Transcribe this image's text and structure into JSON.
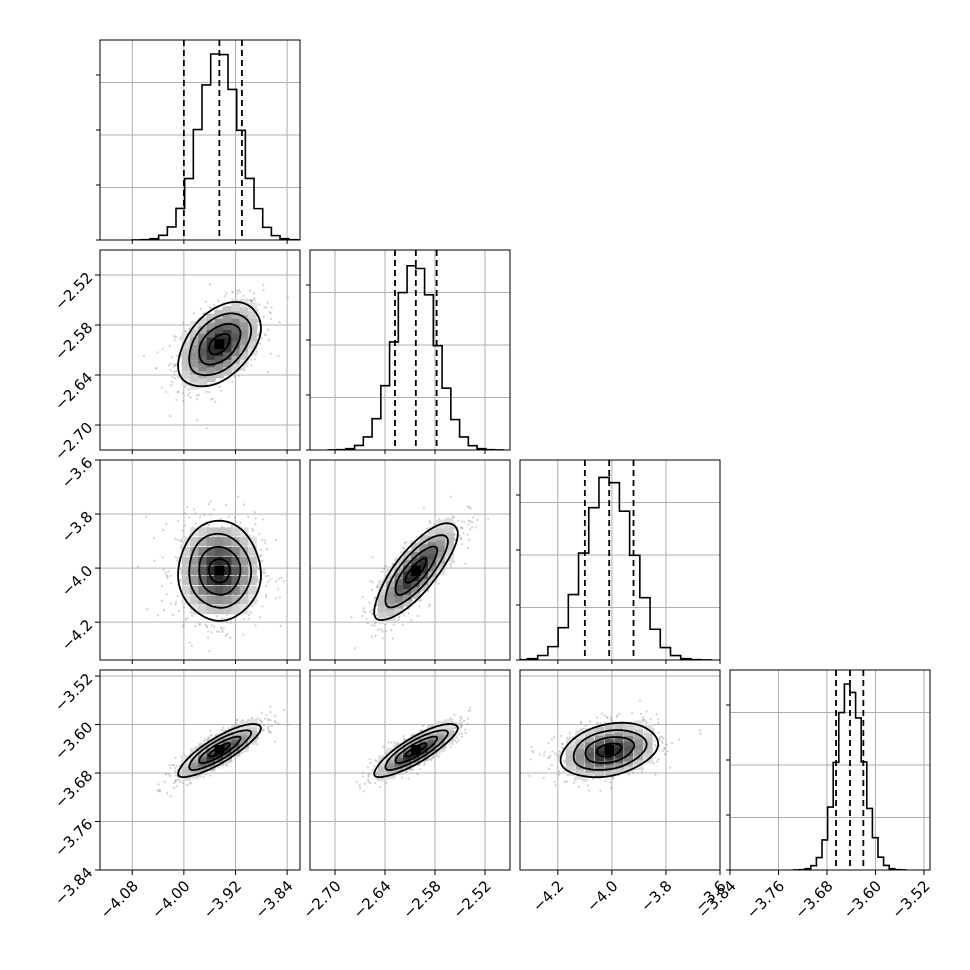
{
  "chart_data": {
    "type": "corner",
    "grid": true,
    "n_parameters": 4,
    "parameters": [
      {
        "mean": -3.945,
        "sd": 0.032,
        "q16": -4.0,
        "q50": -3.945,
        "q84": -3.91,
        "range": [
          -4.13,
          -3.82
        ],
        "ticks": [
          "-4.08",
          "-4.00",
          "-3.92",
          "-3.84"
        ],
        "tick_values": [
          -4.08,
          -4.0,
          -3.92,
          -3.84
        ]
      },
      {
        "mean": -2.603,
        "sd": 0.025,
        "q16": -2.628,
        "q50": -2.603,
        "q84": -2.578,
        "range": [
          -2.73,
          -2.49
        ],
        "ticks": [
          "-2.70",
          "-2.64",
          "-2.58",
          "-2.52"
        ],
        "tick_values": [
          -2.7,
          -2.64,
          -2.58,
          -2.52
        ]
      },
      {
        "mean": -4.01,
        "sd": 0.09,
        "q16": -4.1,
        "q50": -4.01,
        "q84": -3.92,
        "range": [
          -4.34,
          -3.6
        ],
        "ticks": [
          "-4.2",
          "-4.0",
          "-3.8",
          "-3.6"
        ],
        "tick_values": [
          -4.2,
          -4.0,
          -3.8,
          -3.6
        ]
      },
      {
        "mean": -3.642,
        "sd": 0.022,
        "q16": -3.665,
        "q50": -3.642,
        "q84": -3.62,
        "range": [
          -3.84,
          -3.51
        ],
        "ticks": [
          "-3.84",
          "-3.76",
          "-3.68",
          "-3.60",
          "-3.52"
        ],
        "tick_values": [
          -3.84,
          -3.76,
          -3.68,
          -3.6,
          -3.52
        ]
      }
    ],
    "correlations": [
      {
        "pair": [
          1,
          0
        ],
        "r": 0.45
      },
      {
        "pair": [
          2,
          0
        ],
        "r": 0.0
      },
      {
        "pair": [
          2,
          1
        ],
        "r": 0.8
      },
      {
        "pair": [
          3,
          0
        ],
        "r": 0.85
      },
      {
        "pair": [
          3,
          1
        ],
        "r": 0.85
      },
      {
        "pair": [
          3,
          2
        ],
        "r": 0.3
      }
    ],
    "diagonal_y_ticks": 4,
    "contour_levels_sigma": [
      0.5,
      1.0,
      1.5,
      2.0
    ]
  }
}
